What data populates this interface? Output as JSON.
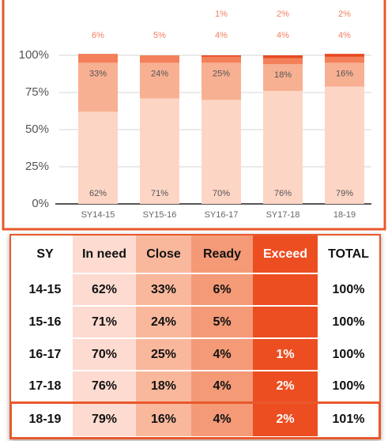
{
  "chart_data": {
    "type": "stacked_bar",
    "categories": [
      "SY14-15",
      "SY15-16",
      "SY16-17",
      "SY17-18",
      "18-19"
    ],
    "series": [
      {
        "color": "#fdd5c5",
        "values": [
          62,
          71,
          70,
          76,
          79
        ],
        "value_labels": [
          "62%",
          "71%",
          "70%",
          "76%",
          "79%"
        ]
      },
      {
        "color": "#f8b092",
        "values": [
          33,
          24,
          25,
          18,
          16
        ],
        "value_labels": [
          "33%",
          "24%",
          "25%",
          "18%",
          "16%"
        ]
      },
      {
        "color": "#f3805a",
        "values": [
          6,
          5,
          4,
          4,
          4
        ],
        "value_labels": [
          "6%",
          "5%",
          "4%",
          "4%",
          "4%"
        ]
      },
      {
        "color": "#e84a23",
        "values": [
          null,
          null,
          1,
          2,
          2
        ],
        "value_labels": [
          null,
          null,
          "1%",
          "2%",
          "2%"
        ]
      }
    ],
    "ylim": [
      0,
      100
    ],
    "yticks": [
      {
        "value": 0,
        "label": "0%"
      },
      {
        "value": 25,
        "label": "25%"
      },
      {
        "value": 50,
        "label": "50%"
      },
      {
        "value": 75,
        "label": "75%"
      },
      {
        "value": 100,
        "label": "100%"
      }
    ],
    "grid": true
  },
  "table": {
    "header": [
      "SY",
      "In need",
      "Close",
      "Ready",
      "Exceed",
      "TOTAL"
    ],
    "rows": [
      [
        "14-15",
        "62%",
        "33%",
        "6%",
        null,
        "100%"
      ],
      [
        "15-16",
        "71%",
        "24%",
        "5%",
        null,
        "100%"
      ],
      [
        "16-17",
        "70%",
        "25%",
        "4%",
        "1%",
        "100%"
      ],
      [
        "17-18",
        "76%",
        "18%",
        "4%",
        "2%",
        "100%"
      ],
      [
        "18-19",
        "79%",
        "16%",
        "4%",
        "2%",
        "101%"
      ]
    ]
  }
}
